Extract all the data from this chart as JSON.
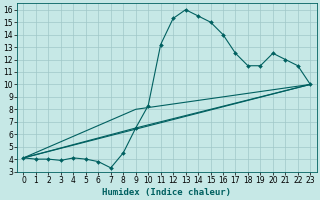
{
  "xlabel": "Humidex (Indice chaleur)",
  "ylabel": "",
  "xlim": [
    -0.5,
    23.5
  ],
  "ylim": [
    3.0,
    16.5
  ],
  "xticks": [
    0,
    1,
    2,
    3,
    4,
    5,
    6,
    7,
    8,
    9,
    10,
    11,
    12,
    13,
    14,
    15,
    16,
    17,
    18,
    19,
    20,
    21,
    22,
    23
  ],
  "yticks": [
    3,
    4,
    5,
    6,
    7,
    8,
    9,
    10,
    11,
    12,
    13,
    14,
    15,
    16
  ],
  "bg_color": "#c6e8e6",
  "line_color": "#006060",
  "grid_color": "#a0c8c8",
  "curve_x": [
    0,
    1,
    2,
    3,
    4,
    5,
    6,
    7,
    8,
    9,
    10,
    11,
    12,
    13,
    14,
    15,
    16,
    17,
    18,
    19,
    20,
    21,
    22,
    23
  ],
  "curve_y": [
    4.1,
    4.0,
    4.0,
    3.9,
    4.1,
    4.0,
    3.8,
    3.3,
    4.5,
    6.5,
    8.3,
    13.2,
    15.3,
    16.0,
    15.5,
    15.0,
    14.0,
    12.5,
    11.5,
    11.5,
    12.5,
    12.0,
    11.5,
    10.0
  ],
  "line1_x": [
    0,
    23
  ],
  "line1_y": [
    4.1,
    10.0
  ],
  "line2_x": [
    0,
    9,
    23
  ],
  "line2_y": [
    4.1,
    8.0,
    10.0
  ],
  "line3_x": [
    0,
    9,
    23
  ],
  "line3_y": [
    4.1,
    6.5,
    10.0
  ]
}
